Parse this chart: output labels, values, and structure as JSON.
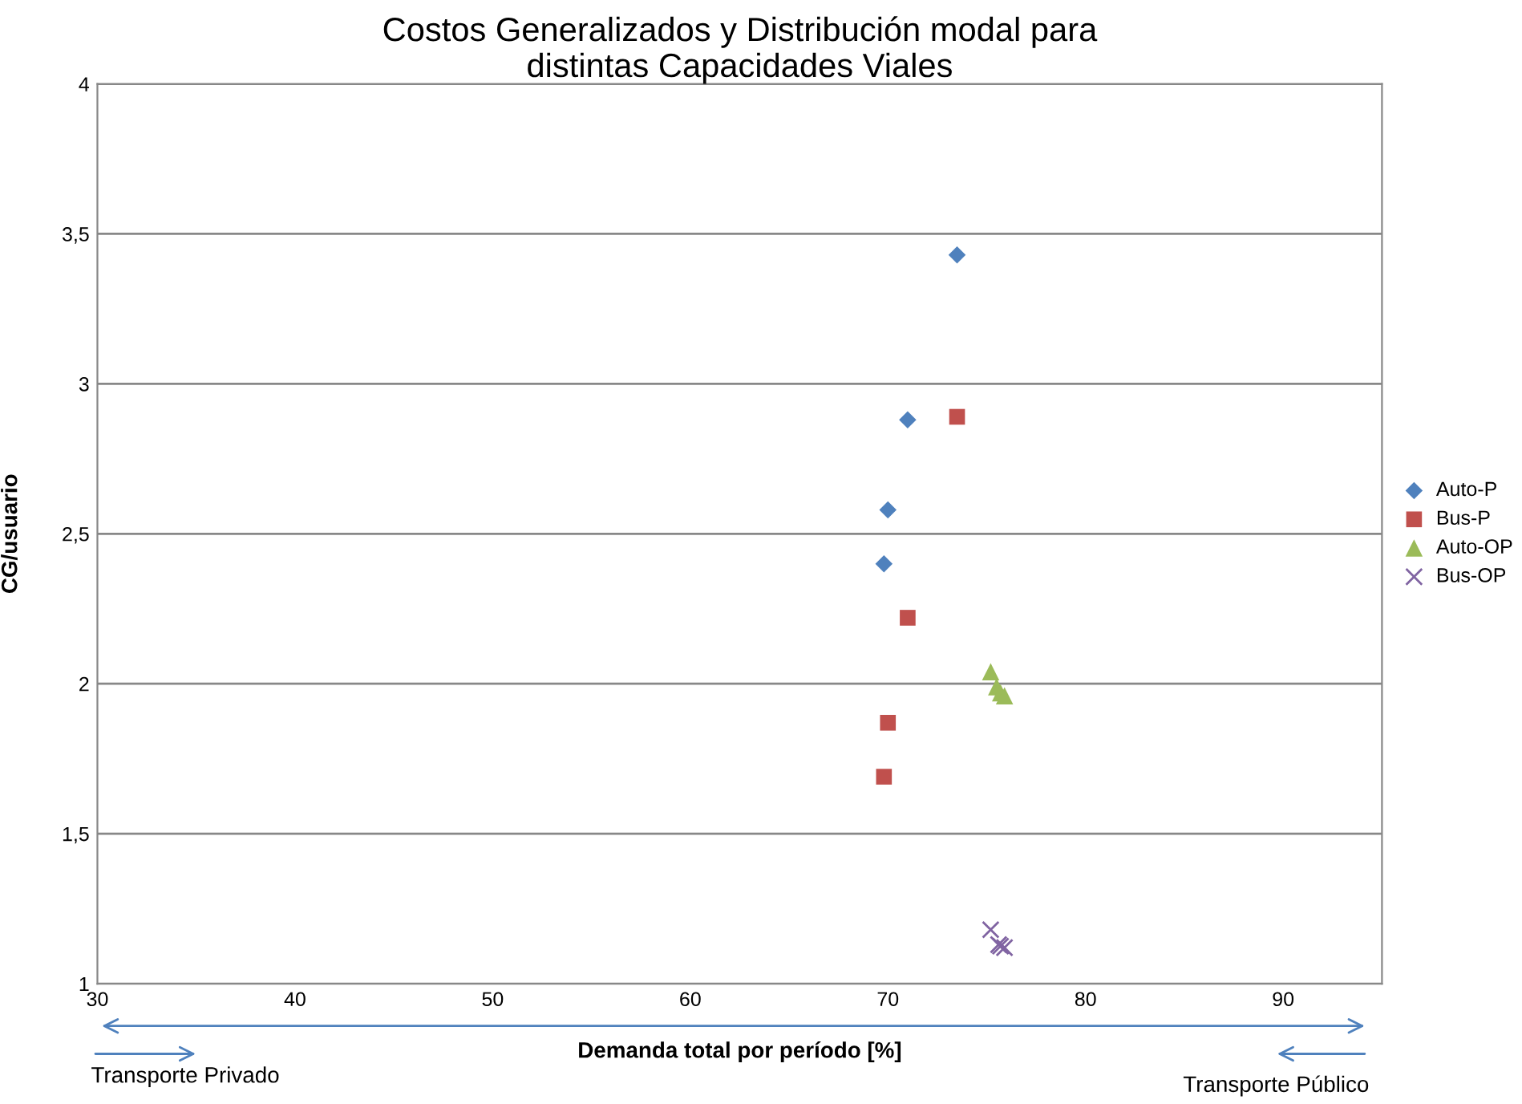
{
  "chart_data": {
    "type": "scatter",
    "title": "Costos Generalizados y Distribución modal para\ndistintas Capacidades Viales",
    "xlabel": "Demanda total por período [%]",
    "ylabel": "CG/usuario",
    "xlim": [
      30,
      95
    ],
    "xticks": [
      30,
      40,
      50,
      60,
      70,
      80,
      90
    ],
    "ylim": [
      1,
      4
    ],
    "yticks": [
      1,
      {
        "value": 1.5,
        "label": "1,5"
      },
      2,
      {
        "value": 2.5,
        "label": "2,5"
      },
      3,
      {
        "value": 3.5,
        "label": "3,5"
      },
      4
    ],
    "grid": "y",
    "legend": "right",
    "series": [
      {
        "name": "Auto-P",
        "color": "#4f81bd",
        "marker": "diamond",
        "x": [
          73.5,
          71.0,
          70.0,
          69.8
        ],
        "values": [
          3.43,
          2.88,
          2.58,
          2.4
        ]
      },
      {
        "name": "Bus-P",
        "color": "#c0504d",
        "marker": "square",
        "x": [
          73.5,
          71.0,
          70.0,
          69.8
        ],
        "values": [
          2.89,
          2.22,
          1.87,
          1.69
        ]
      },
      {
        "name": "Auto-OP",
        "color": "#9bbb59",
        "marker": "triangle",
        "x": [
          75.2,
          75.5,
          75.7,
          75.9
        ],
        "values": [
          2.04,
          1.99,
          1.97,
          1.96
        ]
      },
      {
        "name": "Bus-OP",
        "color": "#8064a2",
        "marker": "cross",
        "x": [
          75.2,
          75.6,
          75.7,
          75.9
        ],
        "values": [
          1.18,
          1.13,
          1.125,
          1.12
        ]
      }
    ],
    "annotations": [
      "Transporte Privado",
      "Transporte Público"
    ]
  }
}
